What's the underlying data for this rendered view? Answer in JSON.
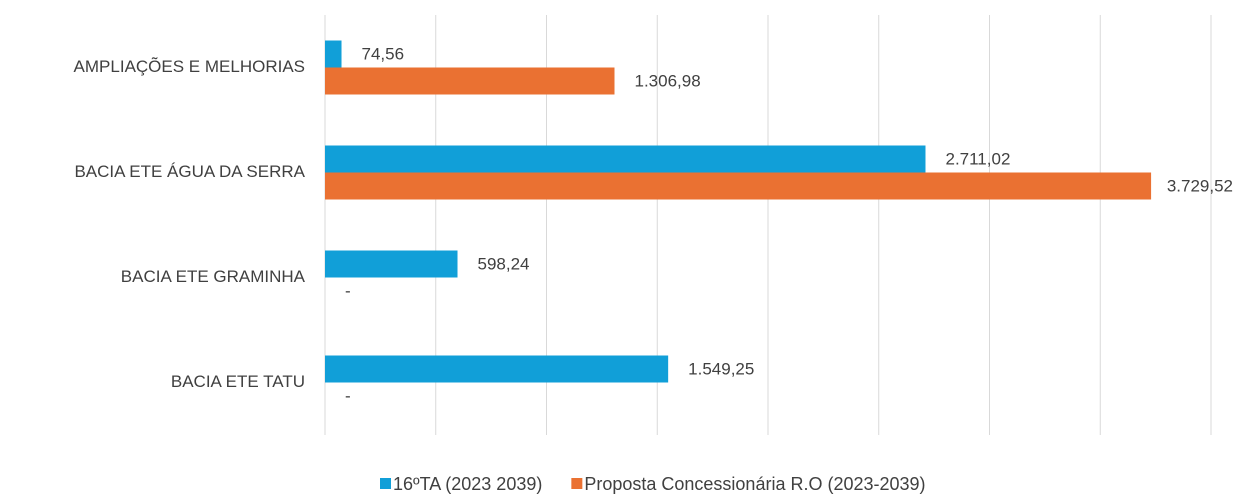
{
  "chart_data": {
    "type": "bar",
    "orientation": "horizontal",
    "categories": [
      "AMPLIAÇÕES E MELHORIAS",
      "BACIA ETE ÁGUA DA SERRA",
      "BACIA ETE GRAMINHA",
      "BACIA ETE TATU"
    ],
    "series": [
      {
        "name": "16ºTA (2023 2039)",
        "color": "#119fd8",
        "values": [
          74.56,
          2711.02,
          598.24,
          1549.25
        ],
        "value_labels": [
          "74,56",
          "2.711,02",
          "598,24",
          "1.549,25"
        ]
      },
      {
        "name": "Proposta Concessionária R.O (2023-2039)",
        "color": "#ea7132",
        "values": [
          1306.98,
          3729.52,
          null,
          null
        ],
        "value_labels": [
          "1.306,98",
          "3.729,52",
          "-",
          "-"
        ]
      }
    ],
    "xlim": [
      0,
      4000
    ],
    "xticks": [
      0,
      500,
      1000,
      1500,
      2000,
      2500,
      3000,
      3500,
      4000
    ],
    "grid": true,
    "legend": "bottom"
  }
}
